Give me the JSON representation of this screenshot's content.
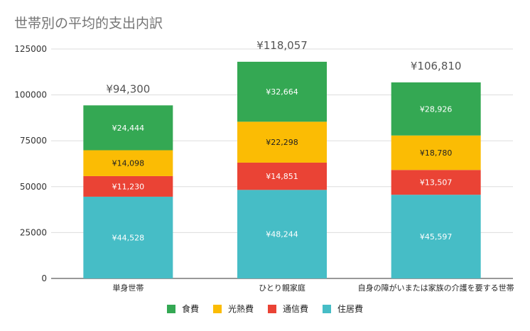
{
  "chart_data": {
    "type": "bar",
    "stacked": true,
    "title": "世帯別の平均的支出内訳",
    "categories": [
      "単身世帯",
      "ひとり親家庭",
      "自身の障がいまたは家族の介護を要する世帯"
    ],
    "series": [
      {
        "name": "住居費",
        "color": "#46BDC6",
        "values": [
          44528,
          48244,
          45597
        ],
        "labels": [
          "¥44,528",
          "¥48,244",
          "¥45,597"
        ]
      },
      {
        "name": "通信費",
        "color": "#EA4335",
        "values": [
          11230,
          14851,
          13507
        ],
        "labels": [
          "¥11,230",
          "¥14,851",
          "¥13,507"
        ]
      },
      {
        "name": "光熱費",
        "color": "#FBBC04",
        "values": [
          14098,
          22298,
          18780
        ],
        "labels": [
          "¥14,098",
          "¥22,298",
          "¥18,780"
        ]
      },
      {
        "name": "食費",
        "color": "#34A853",
        "values": [
          24444,
          32664,
          28926
        ],
        "labels": [
          "¥24,444",
          "¥32,664",
          "¥28,926"
        ]
      }
    ],
    "totals": [
      94300,
      118057,
      106810
    ],
    "total_labels": [
      "¥94,300",
      "¥118,057",
      "¥106,810"
    ],
    "ylim": [
      0,
      125000
    ],
    "yticks": [
      0,
      25000,
      50000,
      75000,
      100000,
      125000
    ],
    "ytick_labels": [
      "0",
      "25000",
      "50000",
      "75000",
      "100000",
      "125000"
    ],
    "grid": true,
    "legend_position": "bottom",
    "legend_order": [
      "食費",
      "光熱費",
      "通信費",
      "住居費"
    ]
  }
}
